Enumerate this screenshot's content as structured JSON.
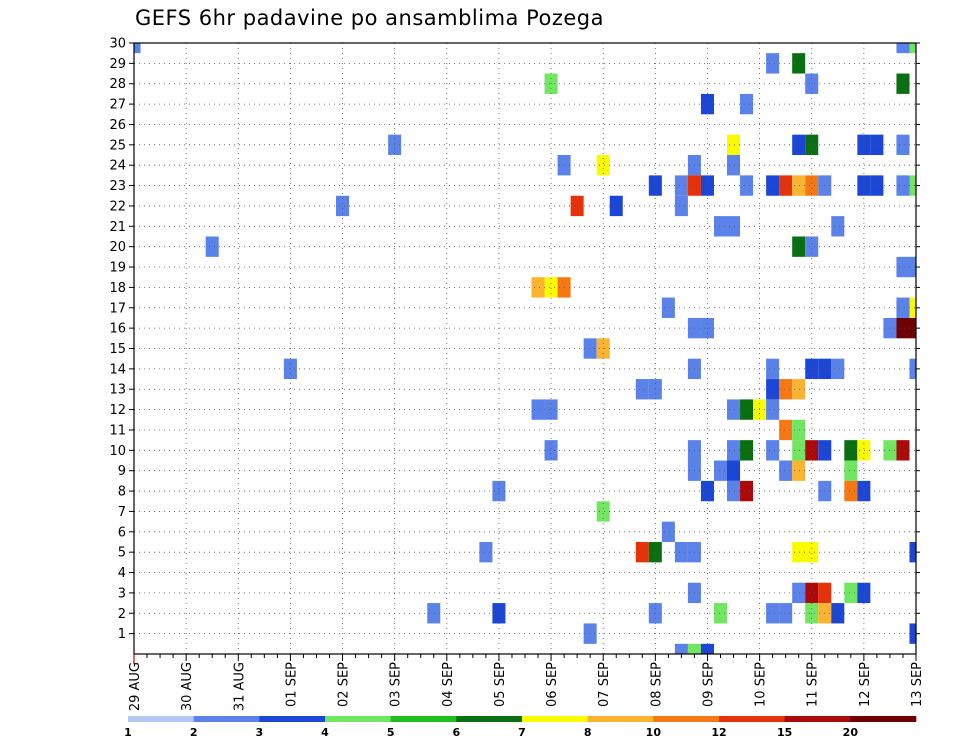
{
  "chart_data": {
    "type": "heatmap",
    "title": "GEFS 6hr padavine po ansamblima Pozega",
    "xlabel": "",
    "ylabel": "",
    "x_ticks": [
      "29 AUG",
      "30 AUG",
      "31 AUG",
      "01 SEP",
      "02 SEP",
      "03 SEP",
      "04 SEP",
      "05 SEP",
      "06 SEP",
      "07 SEP",
      "08 SEP",
      "09 SEP",
      "10 SEP",
      "11 SEP",
      "12 SEP",
      "13 SEP"
    ],
    "y_ticks": [
      1,
      2,
      3,
      4,
      5,
      6,
      7,
      8,
      9,
      10,
      11,
      12,
      13,
      14,
      15,
      16,
      17,
      18,
      19,
      20,
      21,
      22,
      23,
      24,
      25,
      26,
      27,
      28,
      29,
      30
    ],
    "xlim_steps": [
      0,
      60
    ],
    "ylim": [
      0,
      30
    ],
    "grid": true,
    "colorbar": {
      "labels": [
        "1",
        "2",
        "3",
        "4",
        "5",
        "6",
        "7",
        "8",
        "10",
        "12",
        "15",
        "20"
      ],
      "colors": [
        "#b4c7f5",
        "#5a82e8",
        "#1c46d6",
        "#72e662",
        "#1fbe1f",
        "#0a6e12",
        "#fafa00",
        "#fab432",
        "#f57814",
        "#e6320a",
        "#aa0a0a",
        "#6e0000"
      ]
    },
    "cells": [
      [
        0,
        30,
        1
      ],
      [
        59,
        30,
        1
      ],
      [
        60,
        30,
        3
      ],
      [
        49,
        29,
        1
      ],
      [
        51,
        29,
        5
      ],
      [
        32,
        28,
        3
      ],
      [
        52,
        28,
        1
      ],
      [
        59,
        28,
        5
      ],
      [
        44,
        27,
        2
      ],
      [
        47,
        27,
        1
      ],
      [
        20,
        25,
        1
      ],
      [
        46,
        25,
        6
      ],
      [
        51,
        25,
        2
      ],
      [
        52,
        25,
        5
      ],
      [
        56,
        25,
        2
      ],
      [
        57,
        25,
        2
      ],
      [
        59,
        25,
        1
      ],
      [
        33,
        24,
        1
      ],
      [
        36,
        24,
        6
      ],
      [
        43,
        24,
        1
      ],
      [
        46,
        24,
        1
      ],
      [
        40,
        23,
        2
      ],
      [
        42,
        23,
        1
      ],
      [
        43,
        23,
        9
      ],
      [
        44,
        23,
        2
      ],
      [
        47,
        23,
        1
      ],
      [
        49,
        23,
        2
      ],
      [
        50,
        23,
        9
      ],
      [
        51,
        23,
        7
      ],
      [
        52,
        23,
        8
      ],
      [
        53,
        23,
        1
      ],
      [
        56,
        23,
        2
      ],
      [
        57,
        23,
        2
      ],
      [
        59,
        23,
        1
      ],
      [
        60,
        23,
        3
      ],
      [
        16,
        22,
        1
      ],
      [
        34,
        22,
        9
      ],
      [
        37,
        22,
        2
      ],
      [
        42,
        22,
        1
      ],
      [
        45,
        21,
        1
      ],
      [
        46,
        21,
        1
      ],
      [
        54,
        21,
        1
      ],
      [
        6,
        20,
        1
      ],
      [
        51,
        20,
        5
      ],
      [
        52,
        20,
        1
      ],
      [
        59,
        19,
        1
      ],
      [
        60,
        19,
        1
      ],
      [
        31,
        18,
        7
      ],
      [
        32,
        18,
        6
      ],
      [
        33,
        18,
        8
      ],
      [
        41,
        17,
        1
      ],
      [
        59,
        17,
        1
      ],
      [
        60,
        17,
        6
      ],
      [
        43,
        16,
        1
      ],
      [
        44,
        16,
        1
      ],
      [
        58,
        16,
        1
      ],
      [
        59,
        16,
        11
      ],
      [
        60,
        16,
        11
      ],
      [
        35,
        15,
        1
      ],
      [
        36,
        15,
        7
      ],
      [
        12,
        14,
        1
      ],
      [
        43,
        14,
        1
      ],
      [
        49,
        14,
        1
      ],
      [
        52,
        14,
        2
      ],
      [
        53,
        14,
        2
      ],
      [
        54,
        14,
        1
      ],
      [
        60,
        14,
        1
      ],
      [
        39,
        13,
        1
      ],
      [
        40,
        13,
        1
      ],
      [
        49,
        13,
        2
      ],
      [
        50,
        13,
        8
      ],
      [
        51,
        13,
        7
      ],
      [
        31,
        12,
        1
      ],
      [
        32,
        12,
        1
      ],
      [
        46,
        12,
        1
      ],
      [
        47,
        12,
        5
      ],
      [
        48,
        12,
        6
      ],
      [
        49,
        12,
        1
      ],
      [
        50,
        11,
        8
      ],
      [
        51,
        11,
        3
      ],
      [
        32,
        10,
        1
      ],
      [
        43,
        10,
        1
      ],
      [
        46,
        10,
        1
      ],
      [
        47,
        10,
        5
      ],
      [
        49,
        10,
        1
      ],
      [
        51,
        10,
        3
      ],
      [
        52,
        10,
        10
      ],
      [
        53,
        10,
        2
      ],
      [
        55,
        10,
        5
      ],
      [
        56,
        10,
        6
      ],
      [
        58,
        10,
        3
      ],
      [
        59,
        10,
        10
      ],
      [
        43,
        9,
        1
      ],
      [
        45,
        9,
        1
      ],
      [
        46,
        9,
        2
      ],
      [
        50,
        9,
        1
      ],
      [
        51,
        9,
        7
      ],
      [
        55,
        9,
        3
      ],
      [
        28,
        8,
        1
      ],
      [
        44,
        8,
        2
      ],
      [
        46,
        8,
        1
      ],
      [
        47,
        8,
        10
      ],
      [
        53,
        8,
        1
      ],
      [
        55,
        8,
        8
      ],
      [
        56,
        8,
        2
      ],
      [
        36,
        7,
        3
      ],
      [
        41,
        6,
        1
      ],
      [
        27,
        5,
        1
      ],
      [
        39,
        5,
        9
      ],
      [
        40,
        5,
        5
      ],
      [
        42,
        5,
        1
      ],
      [
        43,
        5,
        1
      ],
      [
        51,
        5,
        6
      ],
      [
        52,
        5,
        6
      ],
      [
        60,
        5,
        2
      ],
      [
        43,
        3,
        1
      ],
      [
        51,
        3,
        1
      ],
      [
        52,
        3,
        10
      ],
      [
        53,
        3,
        9
      ],
      [
        55,
        3,
        3
      ],
      [
        56,
        3,
        2
      ],
      [
        23,
        2,
        1
      ],
      [
        28,
        2,
        2
      ],
      [
        40,
        2,
        1
      ],
      [
        45,
        2,
        3
      ],
      [
        49,
        2,
        1
      ],
      [
        50,
        2,
        1
      ],
      [
        52,
        2,
        3
      ],
      [
        53,
        2,
        7
      ],
      [
        54,
        2,
        2
      ],
      [
        35,
        1,
        1
      ],
      [
        60,
        1,
        2
      ],
      [
        42,
        0,
        1
      ],
      [
        43,
        0,
        3
      ],
      [
        44,
        0,
        2
      ]
    ]
  }
}
